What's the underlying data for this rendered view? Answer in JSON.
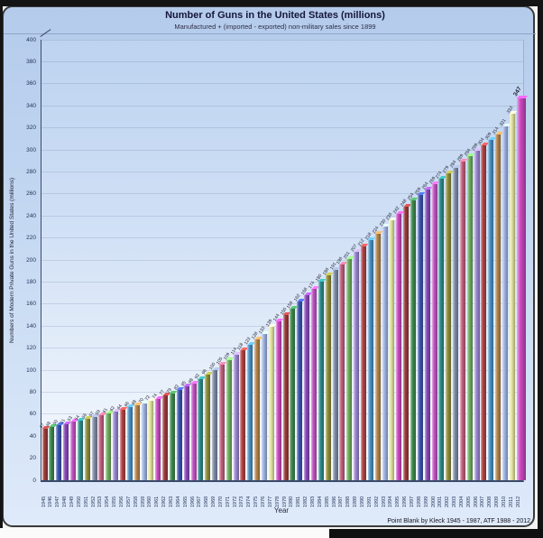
{
  "header": {
    "title": "Number of Guns in the United States (millions)",
    "subtitle": "Manufactured + (imported - exported) non-military sales since 1899"
  },
  "chart_data": {
    "type": "bar",
    "title": "Number of Guns in the United States (millions)",
    "subtitle": "Manufactured + (imported - exported) non-military sales since 1899",
    "xlabel": "Year",
    "ylabel": "Numbers of Modern Private  Guns in the United States (millions)",
    "footer": "Point Blank by Kleck 1945 - 1987, ATF 1988 - 2012",
    "ylim": [
      0,
      400
    ],
    "yticks": [
      0,
      20,
      40,
      60,
      80,
      100,
      120,
      140,
      160,
      180,
      200,
      220,
      240,
      260,
      280,
      300,
      320,
      340,
      360,
      380,
      400
    ],
    "grid": "faint-horizontal",
    "legend": "none",
    "last_bar_label": "347",
    "categories": [
      1945,
      1946,
      1947,
      1948,
      1949,
      1950,
      1951,
      1952,
      1953,
      1954,
      1955,
      1956,
      1957,
      1958,
      1959,
      1960,
      1961,
      1962,
      1963,
      1964,
      1965,
      1966,
      1967,
      1968,
      1969,
      1970,
      1971,
      1972,
      1973,
      1974,
      1975,
      1976,
      1977,
      1978,
      1979,
      1980,
      1981,
      1982,
      1983,
      1984,
      1985,
      1986,
      1987,
      1988,
      1989,
      1990,
      1991,
      1992,
      1993,
      1994,
      1995,
      1996,
      1997,
      1998,
      1999,
      2000,
      2001,
      2002,
      2003,
      2004,
      2005,
      2006,
      2007,
      2008,
      2009,
      2010,
      2011,
      2012
    ],
    "values": [
      47,
      48,
      50,
      51,
      53,
      54,
      56,
      57,
      59,
      61,
      62,
      64,
      66,
      68,
      70,
      72,
      74,
      77,
      79,
      82,
      85,
      88,
      92,
      96,
      100,
      105,
      109,
      114,
      118,
      123,
      128,
      133,
      139,
      144,
      150,
      156,
      162,
      168,
      174,
      180,
      186,
      191,
      196,
      201,
      207,
      212,
      218,
      224,
      230,
      236,
      242,
      248,
      254,
      259,
      264,
      269,
      274,
      279,
      284,
      289,
      294,
      299,
      304,
      309,
      314,
      321,
      333,
      347
    ],
    "bar_palette": [
      "#9c3b3b",
      "#3f8a4d",
      "#3c55ae",
      "#8a49ba",
      "#c253c2",
      "#2f8b8b",
      "#8f8f3a",
      "#7e8ba6",
      "#c2607f",
      "#6fae5d",
      "#9a85d0",
      "#b24444",
      "#4a90c4",
      "#b5854a",
      "#9fb4e4",
      "#e6e6a0",
      "#cc49c0"
    ],
    "colors": {
      "card_top": "#b4cbeb",
      "card_bottom": "#dfeafa",
      "plot_top": "#bdd3f0",
      "plot_bottom": "#f7fafd",
      "axis": "#3a4a6a",
      "frame": "#141414",
      "title_text": "#16163a"
    }
  }
}
